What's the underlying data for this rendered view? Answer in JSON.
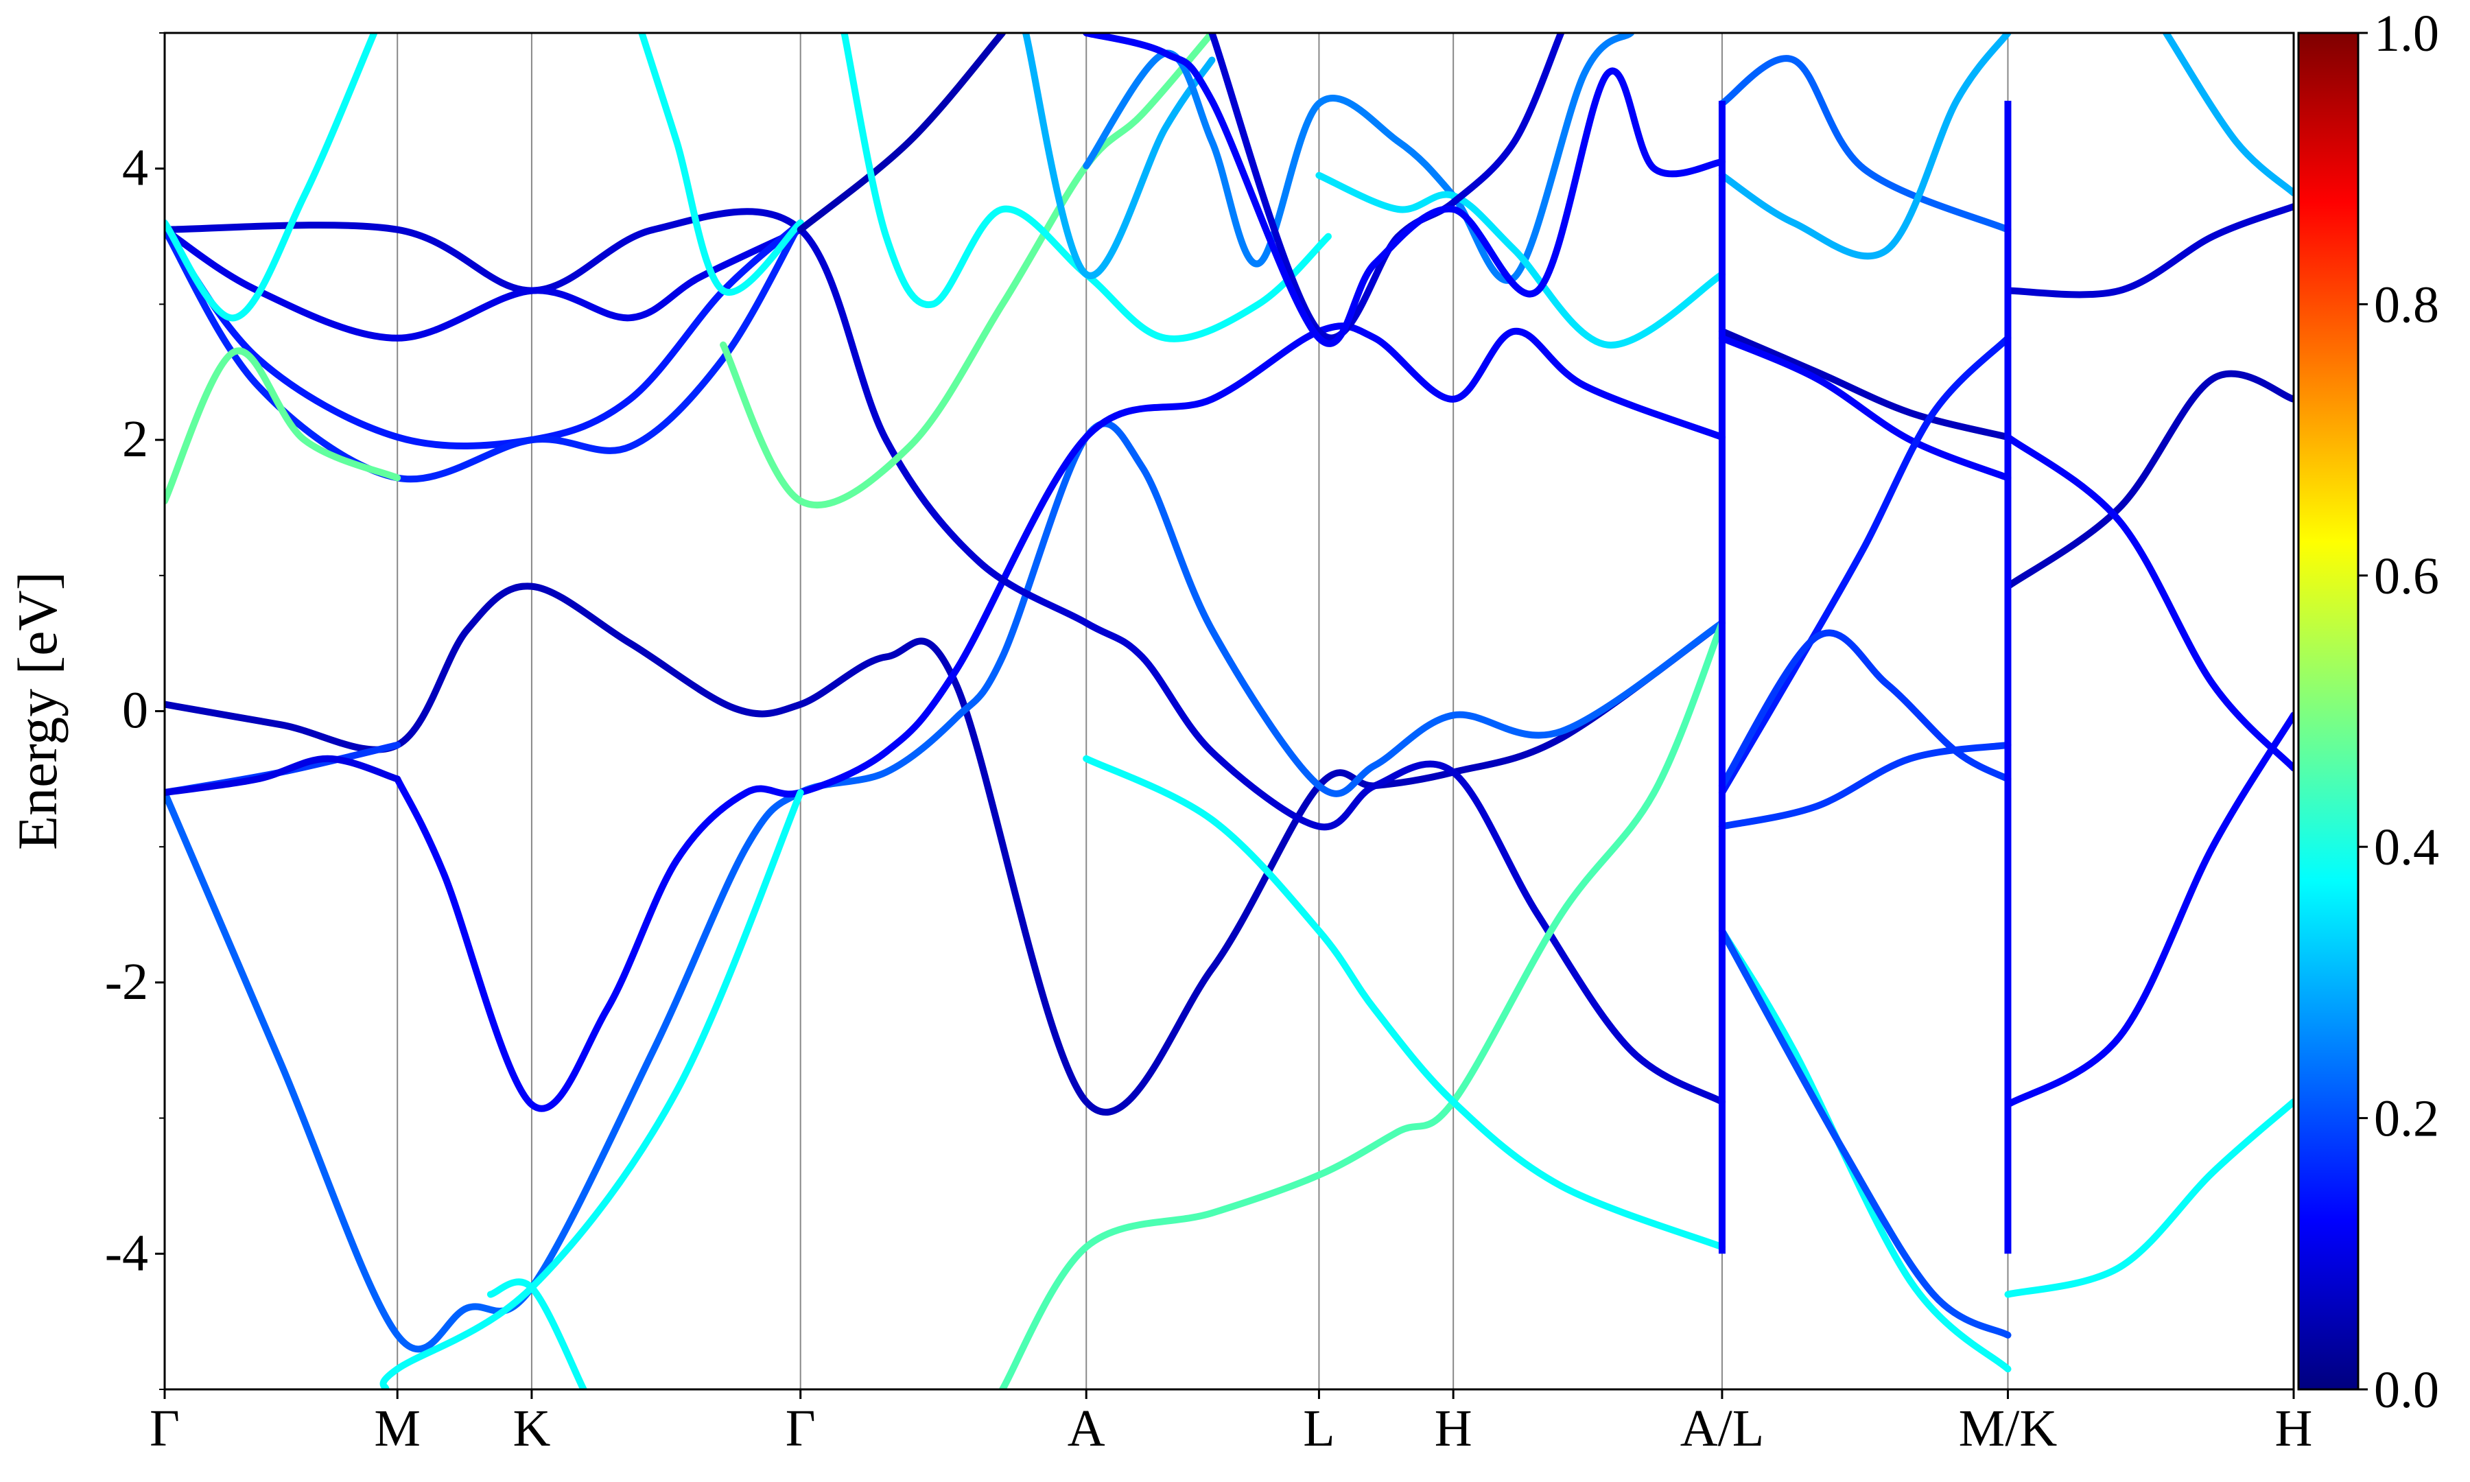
{
  "chart_data": {
    "type": "line",
    "subtype": "band-structure",
    "title": "",
    "xlabel": "",
    "ylabel": "Energy [eV]",
    "ylim": [
      -5,
      5
    ],
    "yticks": [
      "-4",
      "-2",
      "0",
      "2",
      "4"
    ],
    "ytick_values": [
      -4,
      -2,
      0,
      2,
      4
    ],
    "kpath": [
      {
        "label": "Γ",
        "x": 0.0
      },
      {
        "label": "M",
        "x": 1.0
      },
      {
        "label": "K",
        "x": 1.577
      },
      {
        "label": "Γ",
        "x": 2.732
      },
      {
        "label": "A",
        "x": 3.96
      },
      {
        "label": "L",
        "x": 4.96
      },
      {
        "label": "H",
        "x": 5.537
      },
      {
        "label": "A/L",
        "x": 6.692
      },
      {
        "label": "M/K",
        "x": 7.92
      },
      {
        "label": "H",
        "x": 9.148
      }
    ],
    "path_breaks": [
      6.692,
      7.92
    ],
    "grid": false,
    "colorbar": {
      "colormap": "jet",
      "range": [
        0.0,
        1.0
      ],
      "ticks": [
        "0.0",
        "0.2",
        "0.4",
        "0.6",
        "0.8",
        "1.0"
      ],
      "tick_values": [
        0.0,
        0.2,
        0.4,
        0.6,
        0.8,
        1.0
      ],
      "stops": [
        "#00007f",
        "#0000ff",
        "#007fff",
        "#00ffff",
        "#7fff7f",
        "#ffff00",
        "#ff7f00",
        "#ff0000",
        "#7f0000"
      ]
    },
    "series": [
      {
        "weight": 0.06,
        "points": [
          [
            0,
            0.05
          ],
          [
            0.5,
            -0.1
          ],
          [
            1.0,
            -0.25
          ],
          [
            1.3,
            0.6
          ],
          [
            1.577,
            0.92
          ],
          [
            2.0,
            0.5
          ],
          [
            2.45,
            0.02
          ],
          [
            2.732,
            0.05
          ],
          [
            3.1,
            0.4
          ],
          [
            3.4,
            0.2
          ],
          [
            3.96,
            -2.88
          ],
          [
            4.5,
            -1.9
          ],
          [
            4.96,
            -0.55
          ],
          [
            5.2,
            -0.55
          ],
          [
            5.537,
            -0.45
          ],
          [
            6.0,
            -0.2
          ],
          [
            6.692,
            0.65
          ]
        ]
      },
      {
        "weight": 0.18,
        "points": [
          [
            0,
            -0.6
          ],
          [
            0.5,
            -0.45
          ],
          [
            1.0,
            -0.25
          ]
        ]
      },
      {
        "weight": 0.22,
        "points": [
          [
            0,
            -0.6
          ],
          [
            0.5,
            -2.6
          ],
          [
            1.0,
            -4.6
          ],
          [
            1.3,
            -4.4
          ],
          [
            1.577,
            -4.25
          ],
          [
            2.1,
            -2.5
          ],
          [
            2.5,
            -1.0
          ],
          [
            2.732,
            -0.6
          ],
          [
            3.1,
            -0.45
          ],
          [
            3.4,
            -0.05
          ],
          [
            3.6,
            0.4
          ],
          [
            3.96,
            2.02
          ],
          [
            4.2,
            1.8
          ],
          [
            4.5,
            0.6
          ],
          [
            4.96,
            -0.55
          ],
          [
            5.2,
            -0.4
          ],
          [
            5.537,
            -0.03
          ],
          [
            6.0,
            -0.15
          ],
          [
            6.692,
            0.65
          ]
        ]
      },
      {
        "weight": 0.12,
        "points": [
          [
            1.0,
            -0.5
          ],
          [
            1.2,
            -1.2
          ],
          [
            1.577,
            -2.9
          ],
          [
            1.9,
            -2.2
          ],
          [
            2.2,
            -1.1
          ],
          [
            2.5,
            -0.6
          ],
          [
            2.732,
            -0.6
          ],
          [
            3.1,
            -0.3
          ],
          [
            3.4,
            0.3
          ],
          [
            3.96,
            2.02
          ],
          [
            4.5,
            2.3
          ],
          [
            4.96,
            2.8
          ],
          [
            5.2,
            2.75
          ],
          [
            5.537,
            2.3
          ],
          [
            5.8,
            2.8
          ],
          [
            6.1,
            2.4
          ],
          [
            6.692,
            2.02
          ]
        ]
      },
      {
        "weight": 0.1,
        "points": [
          [
            0,
            -0.6
          ],
          [
            0.4,
            -0.5
          ],
          [
            0.7,
            -0.35
          ],
          [
            1.0,
            -0.5
          ]
        ]
      },
      {
        "weight": 0.08,
        "points": [
          [
            0,
            3.55
          ],
          [
            1.0,
            3.55
          ],
          [
            1.577,
            3.1
          ],
          [
            2.1,
            3.55
          ],
          [
            2.732,
            3.55
          ],
          [
            3.1,
            2.0
          ],
          [
            3.5,
            1.1
          ],
          [
            3.96,
            0.65
          ],
          [
            4.2,
            0.4
          ],
          [
            4.5,
            -0.3
          ],
          [
            4.96,
            -0.85
          ],
          [
            5.2,
            -0.55
          ],
          [
            5.537,
            -0.45
          ],
          [
            5.9,
            -1.5
          ],
          [
            6.3,
            -2.5
          ],
          [
            6.692,
            -2.88
          ]
        ]
      },
      {
        "weight": 0.1,
        "points": [
          [
            0,
            3.55
          ],
          [
            0.4,
            3.1
          ],
          [
            1.0,
            2.75
          ],
          [
            1.577,
            3.1
          ],
          [
            2.0,
            2.9
          ],
          [
            2.3,
            3.2
          ],
          [
            2.732,
            3.55
          ]
        ]
      },
      {
        "weight": 0.15,
        "points": [
          [
            0,
            3.55
          ],
          [
            0.4,
            2.6
          ],
          [
            1.0,
            2.02
          ],
          [
            1.577,
            2.0
          ],
          [
            2.0,
            2.3
          ],
          [
            2.4,
            3.1
          ],
          [
            2.732,
            3.6
          ]
        ]
      },
      {
        "weight": 0.16,
        "points": [
          [
            0,
            3.55
          ],
          [
            0.4,
            2.4
          ],
          [
            1.0,
            1.72
          ],
          [
            1.577,
            2.0
          ],
          [
            2.0,
            1.95
          ],
          [
            2.4,
            2.6
          ],
          [
            2.732,
            3.6
          ]
        ]
      },
      {
        "weight": 0.47,
        "points": [
          [
            0,
            1.55
          ],
          [
            0.3,
            2.65
          ],
          [
            0.6,
            2.0
          ],
          [
            1.0,
            1.72
          ]
        ]
      },
      {
        "weight": 0.47,
        "points": [
          [
            2.4,
            2.7
          ],
          [
            2.732,
            1.55
          ],
          [
            3.2,
            1.95
          ],
          [
            3.6,
            3.0
          ],
          [
            3.96,
            4.02
          ],
          [
            4.2,
            4.4
          ],
          [
            4.5,
            5.0
          ]
        ]
      },
      {
        "weight": 0.38,
        "points": [
          [
            0,
            3.6
          ],
          [
            0.3,
            2.9
          ],
          [
            0.6,
            3.8
          ],
          [
            0.9,
            5.0
          ]
        ]
      },
      {
        "weight": 0.38,
        "points": [
          [
            2.05,
            5.0
          ],
          [
            2.2,
            4.2
          ],
          [
            2.4,
            3.1
          ],
          [
            2.732,
            3.6
          ]
        ]
      },
      {
        "weight": 0.38,
        "points": [
          [
            0.95,
            -5.0
          ],
          [
            1.0,
            -4.85
          ],
          [
            1.577,
            -4.25
          ],
          [
            2.2,
            -2.8
          ],
          [
            2.732,
            -0.6
          ]
        ]
      },
      {
        "weight": 0.38,
        "points": [
          [
            1.4,
            -4.3
          ],
          [
            1.577,
            -4.25
          ],
          [
            1.8,
            -5.0
          ]
        ]
      },
      {
        "weight": 0.45,
        "points": [
          [
            3.6,
            -5.0
          ],
          [
            3.96,
            -3.95
          ],
          [
            4.5,
            -3.7
          ],
          [
            4.96,
            -3.42
          ],
          [
            5.3,
            -3.1
          ],
          [
            5.537,
            -2.88
          ],
          [
            6.0,
            -1.5
          ],
          [
            6.4,
            -0.6
          ],
          [
            6.692,
            0.65
          ]
        ]
      },
      {
        "weight": 0.38,
        "points": [
          [
            3.96,
            -0.35
          ],
          [
            4.5,
            -0.8
          ],
          [
            4.96,
            -1.62
          ],
          [
            5.2,
            -2.2
          ],
          [
            5.537,
            -2.88
          ],
          [
            6.0,
            -3.5
          ],
          [
            6.692,
            -3.95
          ]
        ]
      },
      {
        "weight": 0.05,
        "points": [
          [
            2.732,
            3.55
          ],
          [
            3.2,
            4.2
          ],
          [
            3.6,
            5.0
          ]
        ]
      },
      {
        "weight": 0.38,
        "points": [
          [
            2.92,
            5.0
          ],
          [
            3.1,
            3.5
          ],
          [
            3.3,
            3.0
          ],
          [
            3.6,
            3.7
          ],
          [
            3.96,
            3.22
          ],
          [
            4.3,
            2.75
          ],
          [
            4.7,
            3.0
          ],
          [
            5.0,
            3.5
          ]
        ]
      },
      {
        "weight": 0.3,
        "points": [
          [
            3.7,
            5.0
          ],
          [
            3.96,
            3.22
          ],
          [
            4.3,
            4.3
          ],
          [
            4.5,
            4.8
          ]
        ]
      },
      {
        "weight": 0.25,
        "points": [
          [
            3.96,
            4.02
          ],
          [
            4.3,
            4.85
          ],
          [
            4.5,
            4.2
          ],
          [
            4.7,
            3.3
          ],
          [
            4.96,
            4.48
          ],
          [
            5.3,
            4.2
          ],
          [
            5.537,
            3.8
          ],
          [
            5.8,
            3.2
          ],
          [
            6.1,
            4.7
          ],
          [
            6.3,
            5.0
          ]
        ]
      },
      {
        "weight": 0.35,
        "points": [
          [
            4.96,
            3.95
          ],
          [
            5.3,
            3.7
          ],
          [
            5.537,
            3.8
          ],
          [
            5.8,
            3.4
          ],
          [
            6.2,
            2.7
          ],
          [
            6.692,
            3.22
          ]
        ]
      },
      {
        "weight": 0.08,
        "points": [
          [
            4.5,
            5.0
          ],
          [
            4.96,
            2.8
          ],
          [
            5.3,
            3.5
          ],
          [
            5.537,
            3.75
          ],
          [
            5.8,
            4.2
          ],
          [
            6.0,
            5.0
          ]
        ]
      },
      {
        "weight": 0.12,
        "points": [
          [
            3.96,
            5.0
          ],
          [
            4.3,
            4.85
          ],
          [
            4.5,
            4.5
          ],
          [
            4.96,
            2.75
          ],
          [
            5.2,
            3.3
          ],
          [
            5.537,
            3.7
          ],
          [
            5.9,
            3.1
          ],
          [
            6.2,
            4.7
          ],
          [
            6.4,
            4.0
          ],
          [
            6.692,
            4.05
          ]
        ]
      },
      {
        "weight": 0.22,
        "points": [
          [
            6.692,
            4.48
          ],
          [
            7.0,
            4.8
          ],
          [
            7.3,
            4.0
          ],
          [
            7.92,
            3.55
          ]
        ]
      },
      {
        "weight": 0.3,
        "points": [
          [
            6.692,
            3.95
          ],
          [
            7.0,
            3.6
          ],
          [
            7.4,
            3.4
          ],
          [
            7.7,
            4.5
          ],
          [
            7.92,
            5.0
          ]
        ]
      },
      {
        "weight": 0.06,
        "points": [
          [
            6.692,
            2.8
          ],
          [
            7.1,
            2.5
          ],
          [
            7.5,
            2.2
          ],
          [
            7.92,
            2.02
          ]
        ]
      },
      {
        "weight": 0.12,
        "points": [
          [
            6.692,
            2.75
          ],
          [
            7.1,
            2.45
          ],
          [
            7.5,
            2.0
          ],
          [
            7.92,
            1.72
          ]
        ]
      },
      {
        "weight": 0.15,
        "points": [
          [
            6.692,
            -0.6
          ],
          [
            7.0,
            0.3
          ],
          [
            7.3,
            1.2
          ],
          [
            7.6,
            2.2
          ],
          [
            7.92,
            2.75
          ]
        ]
      },
      {
        "weight": 0.18,
        "points": [
          [
            6.692,
            -0.55
          ],
          [
            7.1,
            0.55
          ],
          [
            7.4,
            0.2
          ],
          [
            7.7,
            -0.3
          ],
          [
            7.92,
            -0.5
          ]
        ]
      },
      {
        "weight": 0.18,
        "points": [
          [
            6.692,
            -0.85
          ],
          [
            7.1,
            -0.7
          ],
          [
            7.5,
            -0.35
          ],
          [
            7.92,
            -0.25
          ]
        ]
      },
      {
        "weight": 0.38,
        "points": [
          [
            6.692,
            -1.62
          ],
          [
            7.0,
            -2.5
          ],
          [
            7.5,
            -4.2
          ],
          [
            7.92,
            -4.85
          ]
        ]
      },
      {
        "weight": 0.2,
        "points": [
          [
            6.692,
            -1.62
          ],
          [
            7.2,
            -3.2
          ],
          [
            7.6,
            -4.3
          ],
          [
            7.92,
            -4.6
          ]
        ]
      },
      {
        "weight": 0.08,
        "points": [
          [
            7.92,
            3.1
          ],
          [
            8.4,
            3.1
          ],
          [
            8.8,
            3.5
          ],
          [
            9.148,
            3.72
          ]
        ]
      },
      {
        "weight": 0.06,
        "points": [
          [
            7.92,
            0.92
          ],
          [
            8.4,
            1.5
          ],
          [
            8.8,
            2.45
          ],
          [
            9.148,
            2.3
          ]
        ]
      },
      {
        "weight": 0.12,
        "points": [
          [
            7.92,
            2.02
          ],
          [
            8.4,
            1.4
          ],
          [
            8.8,
            0.2
          ],
          [
            9.148,
            -0.42
          ]
        ]
      },
      {
        "weight": 0.12,
        "points": [
          [
            7.92,
            -2.9
          ],
          [
            8.4,
            -2.4
          ],
          [
            8.8,
            -1.0
          ],
          [
            9.148,
            -0.03
          ]
        ]
      },
      {
        "weight": 0.38,
        "points": [
          [
            7.92,
            -4.3
          ],
          [
            8.4,
            -4.1
          ],
          [
            8.8,
            -3.4
          ],
          [
            9.148,
            -2.88
          ]
        ]
      },
      {
        "weight": 0.3,
        "points": [
          [
            8.6,
            5.0
          ],
          [
            8.9,
            4.2
          ],
          [
            9.148,
            3.82
          ]
        ]
      }
    ]
  }
}
